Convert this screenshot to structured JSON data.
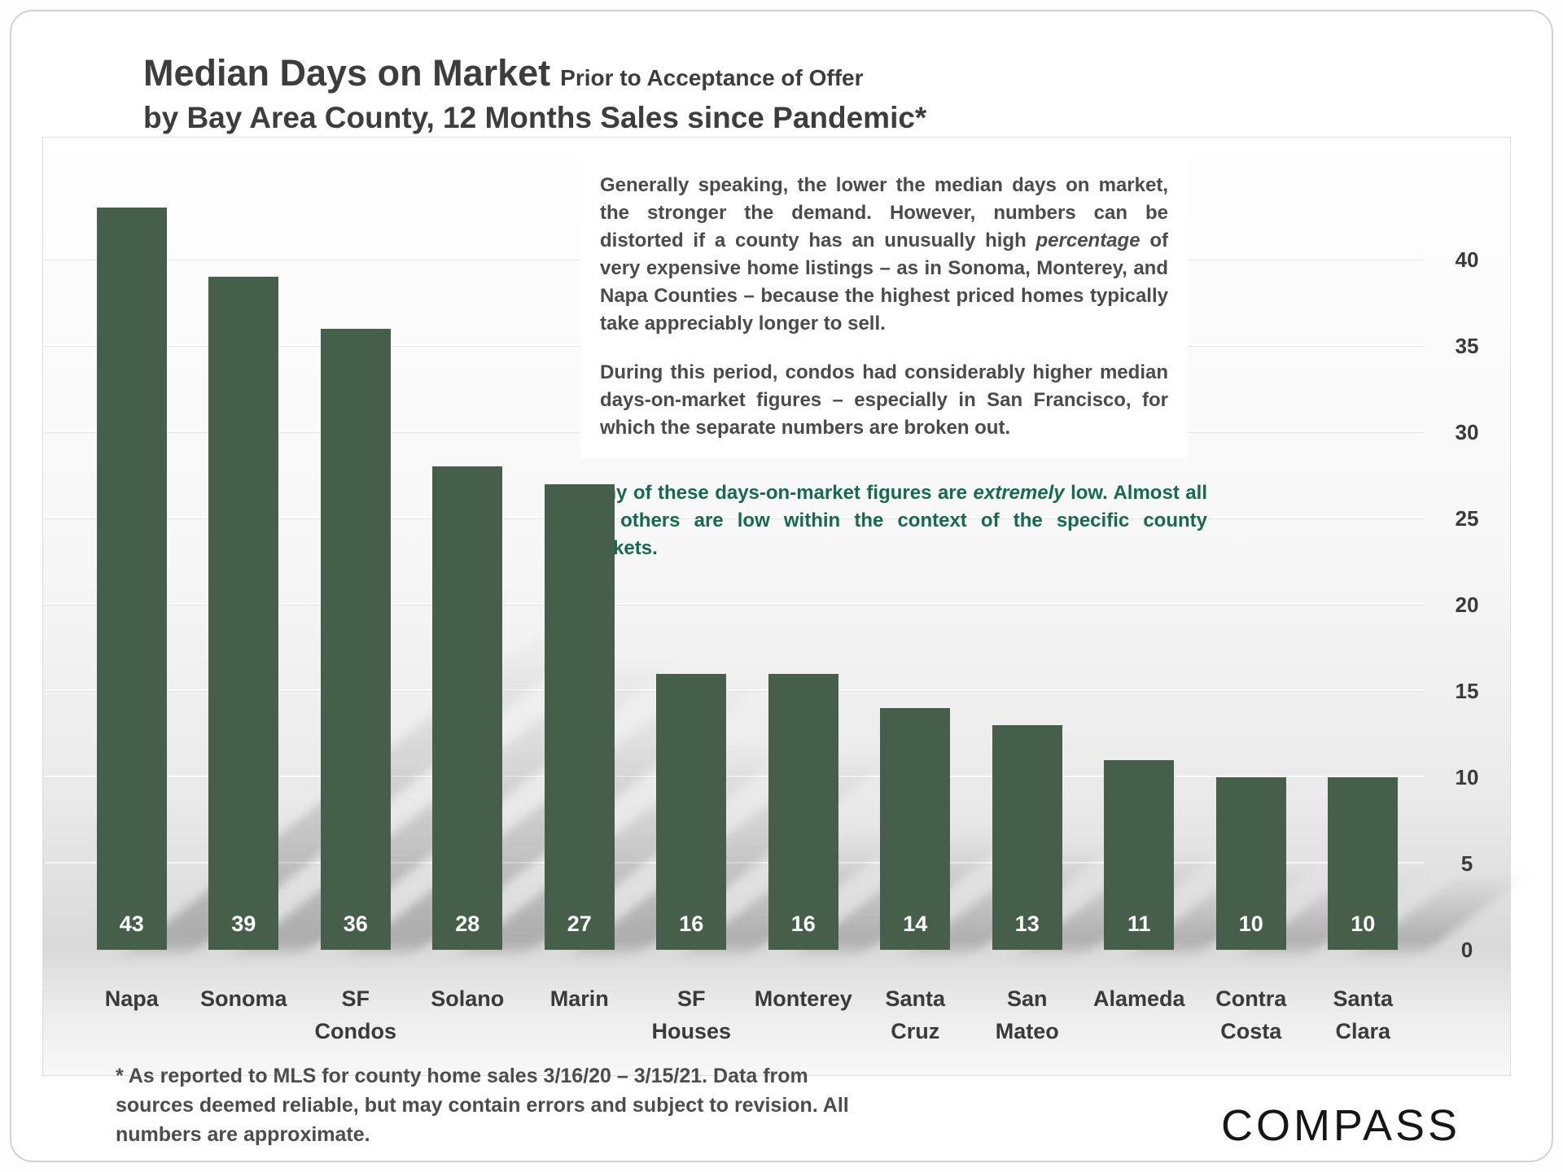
{
  "title": {
    "main": "Median Days on Market",
    "suffix": "Prior to Acceptance of Offer",
    "line2": "by Bay Area County, 12 Months Sales since Pandemic*"
  },
  "chart_data": {
    "type": "bar",
    "categories": [
      "Napa",
      "Sonoma",
      "SF Condos",
      "Solano",
      "Marin",
      "SF Houses",
      "Monterey",
      "Santa Cruz",
      "San Mateo",
      "Alameda",
      "Contra Costa",
      "Santa Clara"
    ],
    "values": [
      43,
      39,
      36,
      28,
      27,
      16,
      16,
      14,
      13,
      11,
      10,
      10
    ],
    "title": "Median Days on Market Prior to Acceptance of Offer, by Bay Area County, 12 Months Sales since Pandemic*",
    "xlabel": "",
    "ylabel": "",
    "ylim": [
      0,
      45
    ],
    "yticks": [
      0,
      5,
      10,
      15,
      20,
      25,
      30,
      35,
      40
    ],
    "bar_color": "#455F4B",
    "value_label_style": "white bold inside bottom of bar",
    "legend": "none",
    "grid": "faint horizontal gridlines every 5, y-axis labels on right side"
  },
  "note_box": {
    "p1a": "Generally speaking, the lower the median days on market, the stronger the demand. However, numbers can be distorted if a county has an unusually high ",
    "p1_italic": "percentage",
    "p1b": " of very expensive home listings – as in Sonoma, Monterey, and Napa Counties – because the highest priced homes typically take appreciably longer to sell.",
    "p2": "During this period, condos had considerably higher median days-on-market figures – especially in San Francisco, for which the separate numbers are broken out."
  },
  "green_note": {
    "a": "Many of these days-on-market figures are ",
    "b": "extremely",
    "c": " low. Almost all the others are low within the context of the specific county markets.",
    "color": "#166A4F"
  },
  "footnote": "* As reported to MLS for county home sales 3/16/20 – 3/15/21. Data from sources deemed reliable, but may contain errors and subject to revision. All numbers are approximate.",
  "logo": "COMPASS"
}
